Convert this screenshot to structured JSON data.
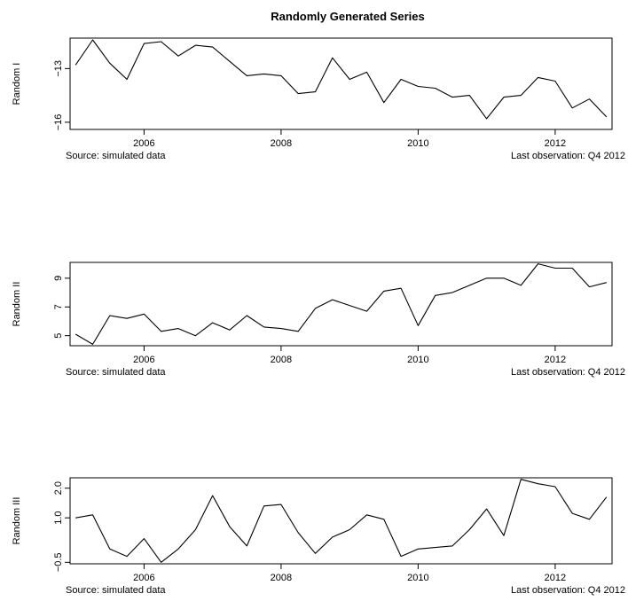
{
  "chart_data": [
    {
      "type": "line",
      "title": "Randomly Generated Series",
      "ylabel": "Random I",
      "xlim": [
        2004.92,
        2012.83
      ],
      "ylim": [
        -16.4,
        -11.3
      ],
      "yticks": [
        -16,
        -13
      ],
      "yticklabels": [
        "−16",
        "−13"
      ],
      "xticks": [
        2006,
        2008,
        2010,
        2012
      ],
      "xticklabels": [
        "2006",
        "2008",
        "2010",
        "2012"
      ],
      "source_note": "Source: simulated data",
      "last_obs_note": "Last observation: Q4 2012",
      "x": [
        2005.0,
        2005.25,
        2005.5,
        2005.75,
        2006.0,
        2006.25,
        2006.5,
        2006.75,
        2007.0,
        2007.25,
        2007.5,
        2007.75,
        2008.0,
        2008.25,
        2008.5,
        2008.75,
        2009.0,
        2009.25,
        2009.5,
        2009.75,
        2010.0,
        2010.25,
        2010.5,
        2010.75,
        2011.0,
        2011.25,
        2011.5,
        2011.75,
        2012.0,
        2012.25,
        2012.5,
        2012.75
      ],
      "values": [
        -12.8,
        -11.4,
        -12.7,
        -13.6,
        -11.6,
        -11.5,
        -12.3,
        -11.7,
        -11.8,
        -12.6,
        -13.4,
        -13.3,
        -13.4,
        -14.4,
        -14.3,
        -12.4,
        -13.6,
        -13.2,
        -14.9,
        -13.6,
        -14.0,
        -14.1,
        -14.6,
        -14.5,
        -15.8,
        -14.6,
        -14.5,
        -13.5,
        -13.7,
        -15.2,
        -14.7,
        -15.7
      ]
    },
    {
      "type": "line",
      "ylabel": "Random II",
      "xlim": [
        2004.92,
        2012.83
      ],
      "ylim": [
        4.3,
        10.1
      ],
      "yticks": [
        5,
        7,
        9
      ],
      "yticklabels": [
        "5",
        "7",
        "9"
      ],
      "xticks": [
        2006,
        2008,
        2010,
        2012
      ],
      "xticklabels": [
        "2006",
        "2008",
        "2010",
        "2012"
      ],
      "source_note": "Source: simulated data",
      "last_obs_note": "Last observation: Q4 2012",
      "x": [
        2005.0,
        2005.25,
        2005.5,
        2005.75,
        2006.0,
        2006.25,
        2006.5,
        2006.75,
        2007.0,
        2007.25,
        2007.5,
        2007.75,
        2008.0,
        2008.25,
        2008.5,
        2008.75,
        2009.0,
        2009.25,
        2009.5,
        2009.75,
        2010.0,
        2010.25,
        2010.5,
        2010.75,
        2011.0,
        2011.25,
        2011.5,
        2011.75,
        2012.0,
        2012.25,
        2012.5,
        2012.75
      ],
      "values": [
        5.1,
        4.4,
        6.4,
        6.2,
        6.5,
        5.3,
        5.5,
        5.0,
        5.9,
        5.4,
        6.4,
        5.6,
        5.5,
        5.3,
        6.9,
        7.5,
        7.1,
        6.7,
        8.1,
        8.3,
        5.7,
        7.8,
        8.0,
        8.5,
        9.0,
        9.0,
        8.5,
        10.0,
        9.7,
        9.7,
        8.4,
        8.7
      ]
    },
    {
      "type": "line",
      "ylabel": "Random III",
      "xlim": [
        2004.92,
        2012.83
      ],
      "ylim": [
        -0.55,
        2.35
      ],
      "yticks": [
        -0.5,
        1.0,
        2.0
      ],
      "yticklabels": [
        "−0.5",
        "1.0",
        "2.0"
      ],
      "xticks": [
        2006,
        2008,
        2010,
        2012
      ],
      "xticklabels": [
        "2006",
        "2008",
        "2010",
        "2012"
      ],
      "source_note": "Source: simulated data",
      "last_obs_note": "Last observation: Q4 2012",
      "x": [
        2005.0,
        2005.25,
        2005.5,
        2005.75,
        2006.0,
        2006.25,
        2006.5,
        2006.75,
        2007.0,
        2007.25,
        2007.5,
        2007.75,
        2008.0,
        2008.25,
        2008.5,
        2008.75,
        2009.0,
        2009.25,
        2009.5,
        2009.75,
        2010.0,
        2010.25,
        2010.5,
        2010.75,
        2011.0,
        2011.25,
        2011.5,
        2011.75,
        2012.0,
        2012.25,
        2012.5,
        2012.75
      ],
      "values": [
        1.0,
        1.1,
        -0.05,
        -0.3,
        0.3,
        -0.5,
        -0.05,
        0.6,
        1.75,
        0.7,
        0.05,
        1.4,
        1.45,
        0.5,
        -0.2,
        0.35,
        0.6,
        1.1,
        0.95,
        -0.3,
        -0.05,
        0.0,
        0.05,
        0.6,
        1.3,
        0.4,
        2.3,
        2.15,
        2.05,
        1.15,
        0.95,
        1.7
      ]
    }
  ]
}
